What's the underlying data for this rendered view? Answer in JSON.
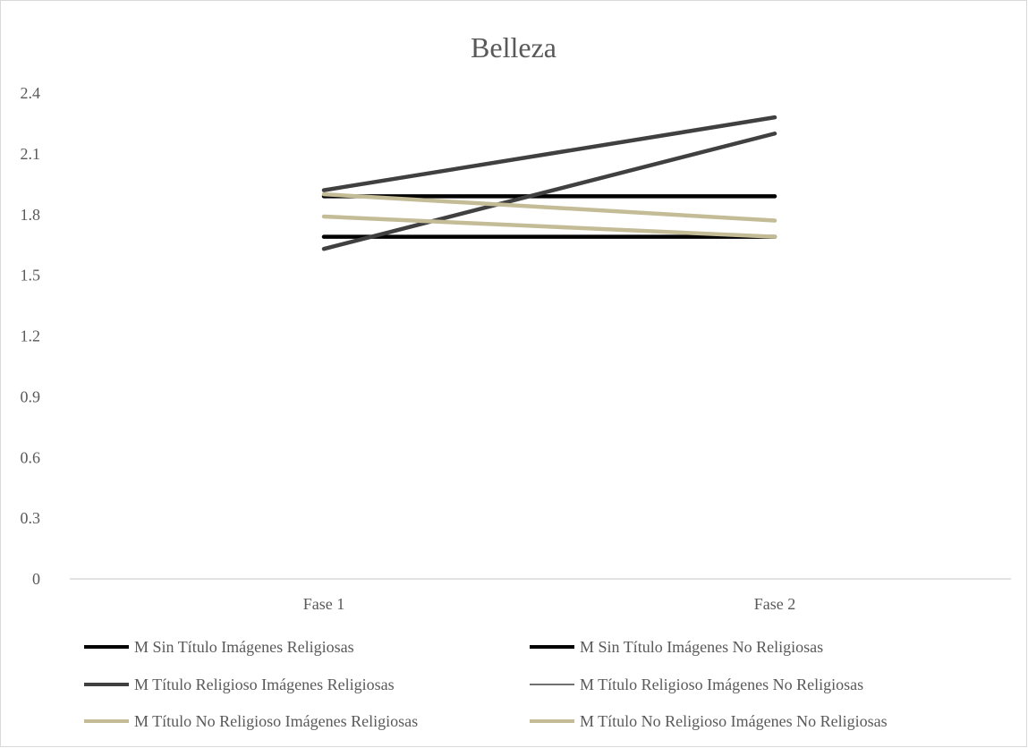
{
  "chart_data": {
    "type": "line",
    "title": "Belleza",
    "xlabel": "",
    "ylabel": "",
    "categories": [
      "Fase 1",
      "Fase 2"
    ],
    "ylim": [
      0,
      2.4
    ],
    "yticks": [
      "0",
      "0.3",
      "0.6",
      "0.9",
      "1.2",
      "1.5",
      "1.8",
      "2.1",
      "2.4"
    ],
    "grid": false,
    "legend_position": "bottom",
    "series": [
      {
        "name": "M Sin Título Imágenes Religiosas",
        "values": [
          1.89,
          1.89
        ],
        "color": "#000000",
        "style": "thick"
      },
      {
        "name": "M Sin Título Imágenes No Religiosas",
        "values": [
          1.69,
          1.69
        ],
        "color": "#000000",
        "style": "thick"
      },
      {
        "name": "M Título Religioso Imágenes Religiosas",
        "values": [
          1.92,
          2.28
        ],
        "color": "#404040",
        "style": "thick"
      },
      {
        "name": "M Título Religioso Imágenes No Religiosas",
        "values": [
          1.63,
          2.2
        ],
        "color": "#404040",
        "style": "thin"
      },
      {
        "name": "M Título No Religioso Imágenes Religiosas",
        "values": [
          1.9,
          1.77
        ],
        "color": "#c4bc96",
        "style": "thick"
      },
      {
        "name": "M Título No Religioso Imágenes No Religiosas",
        "values": [
          1.79,
          1.69
        ],
        "color": "#c4bc96",
        "style": "thick"
      }
    ]
  }
}
